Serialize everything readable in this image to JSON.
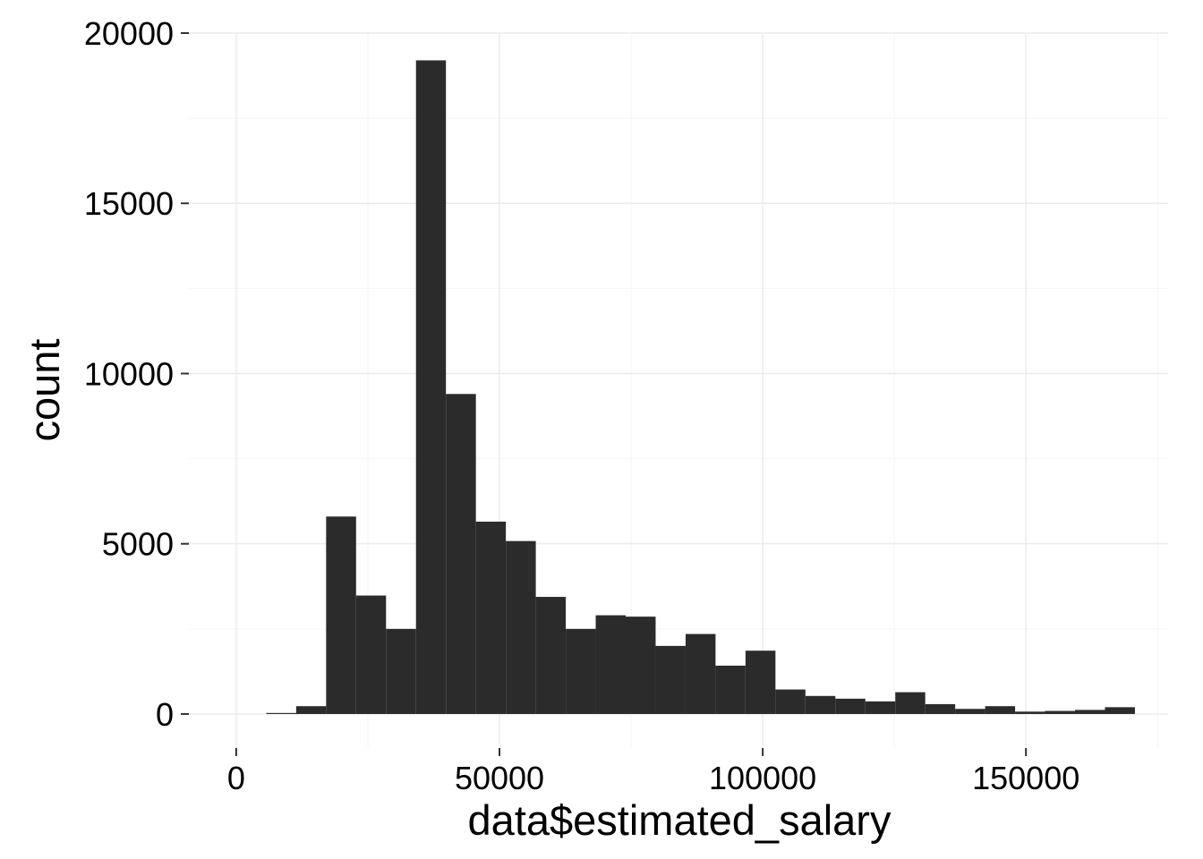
{
  "chart_data": {
    "type": "bar",
    "subtype": "histogram",
    "title": "",
    "xlabel": "data$estimated_salary",
    "ylabel": "count",
    "xlim": [
      -9000,
      177000
    ],
    "ylim": [
      -1000,
      20000
    ],
    "x_ticks": [
      0,
      50000,
      100000,
      150000
    ],
    "x_tick_labels": [
      "0",
      "50000",
      "100000",
      "150000"
    ],
    "y_ticks": [
      0,
      5000,
      10000,
      15000,
      20000
    ],
    "y_tick_labels": [
      "0",
      "5000",
      "10000",
      "15000",
      "20000"
    ],
    "grid": true,
    "bin_width": 5690,
    "bar_color": "#2b2b2b",
    "bins": [
      {
        "x0": 5690,
        "x1": 11380,
        "count": 30
      },
      {
        "x0": 11380,
        "x1": 17070,
        "count": 230
      },
      {
        "x0": 17070,
        "x1": 22760,
        "count": 5800
      },
      {
        "x0": 22760,
        "x1": 28450,
        "count": 3480
      },
      {
        "x0": 28450,
        "x1": 34140,
        "count": 2500
      },
      {
        "x0": 34140,
        "x1": 39830,
        "count": 19200
      },
      {
        "x0": 39830,
        "x1": 45520,
        "count": 9400
      },
      {
        "x0": 45520,
        "x1": 51210,
        "count": 5650
      },
      {
        "x0": 51210,
        "x1": 56900,
        "count": 5080
      },
      {
        "x0": 56900,
        "x1": 62590,
        "count": 3440
      },
      {
        "x0": 62590,
        "x1": 68280,
        "count": 2500
      },
      {
        "x0": 68280,
        "x1": 73970,
        "count": 2900
      },
      {
        "x0": 73970,
        "x1": 79660,
        "count": 2860
      },
      {
        "x0": 79660,
        "x1": 85350,
        "count": 2000
      },
      {
        "x0": 85350,
        "x1": 91040,
        "count": 2350
      },
      {
        "x0": 91040,
        "x1": 96730,
        "count": 1420
      },
      {
        "x0": 96730,
        "x1": 102420,
        "count": 1860
      },
      {
        "x0": 102420,
        "x1": 108110,
        "count": 720
      },
      {
        "x0": 108110,
        "x1": 113800,
        "count": 530
      },
      {
        "x0": 113800,
        "x1": 119490,
        "count": 450
      },
      {
        "x0": 119490,
        "x1": 125180,
        "count": 370
      },
      {
        "x0": 125180,
        "x1": 130870,
        "count": 640
      },
      {
        "x0": 130870,
        "x1": 136560,
        "count": 290
      },
      {
        "x0": 136560,
        "x1": 142250,
        "count": 150
      },
      {
        "x0": 142250,
        "x1": 147940,
        "count": 230
      },
      {
        "x0": 147940,
        "x1": 153630,
        "count": 70
      },
      {
        "x0": 153630,
        "x1": 159320,
        "count": 90
      },
      {
        "x0": 159320,
        "x1": 165010,
        "count": 120
      },
      {
        "x0": 165010,
        "x1": 170700,
        "count": 200
      }
    ]
  }
}
